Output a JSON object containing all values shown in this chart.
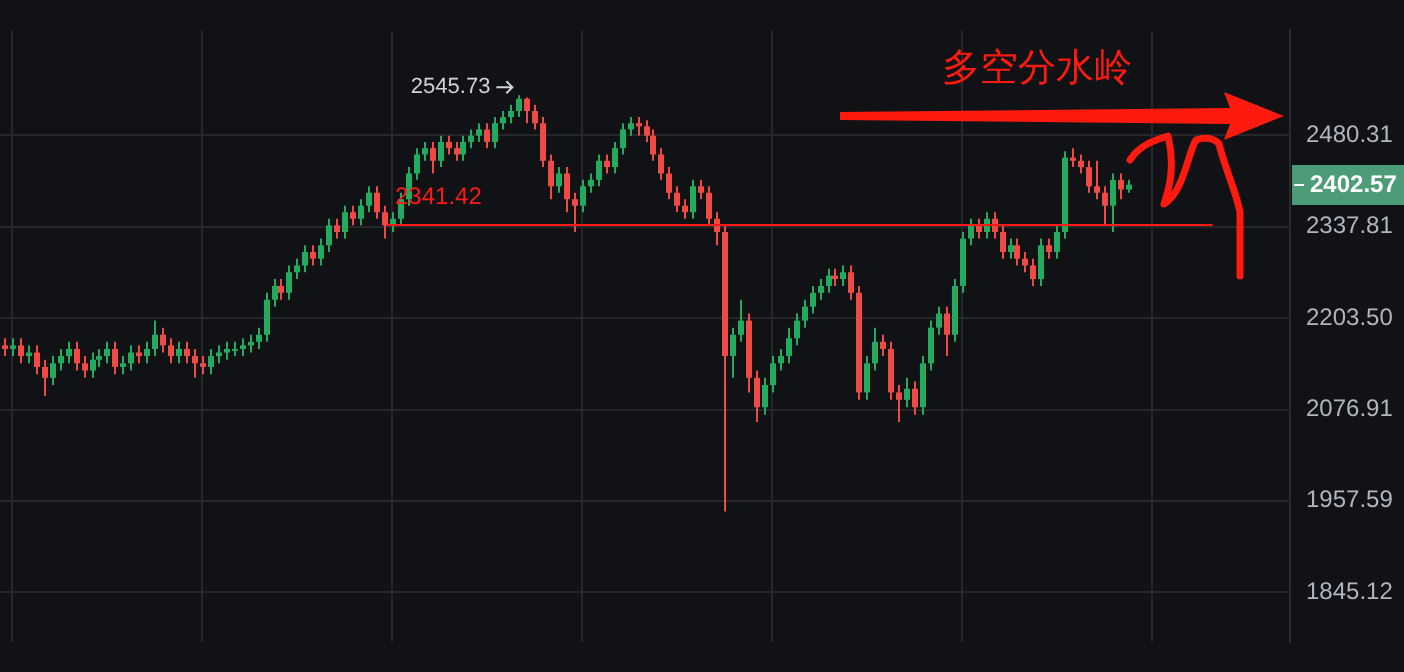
{
  "chart_data": {
    "type": "candlestick",
    "categories": [
      null,
      null,
      null,
      null,
      null,
      null,
      null,
      null,
      null,
      null,
      null,
      null,
      null,
      null,
      null,
      null,
      null,
      null,
      null,
      null,
      null,
      null,
      null,
      null,
      null,
      null,
      null,
      null,
      null,
      null,
      null,
      null,
      null,
      null,
      null,
      null,
      null,
      null,
      null,
      null,
      null,
      null,
      null,
      null,
      null,
      null,
      null,
      null,
      null,
      null,
      null,
      null,
      null,
      null,
      null,
      null,
      null,
      null,
      null,
      null,
      null,
      null,
      null,
      null,
      null,
      null,
      null,
      null,
      null,
      null,
      null,
      null,
      null,
      null,
      null,
      null,
      null,
      null,
      null,
      null,
      null,
      null,
      null,
      null,
      null,
      null,
      null,
      null,
      null,
      null,
      null,
      null,
      null,
      null,
      null,
      null,
      null,
      null,
      null,
      null,
      null,
      null,
      null,
      null,
      null,
      null,
      null,
      null,
      null,
      null,
      null,
      null,
      null,
      null,
      null,
      null,
      null,
      null,
      null,
      null,
      null,
      null,
      null,
      null,
      null,
      null,
      null,
      null,
      null,
      null,
      null,
      null,
      null,
      null,
      null,
      null,
      null,
      null,
      null,
      null,
      null,
      null,
      null,
      null,
      null,
      null,
      null,
      null,
      null,
      null,
      null,
      null,
      null,
      null,
      null,
      null,
      null,
      null,
      null,
      null,
      null,
      null,
      null
    ],
    "ohlc": [
      [
        2165,
        2175,
        2150,
        2160
      ],
      [
        2160,
        2175,
        2150,
        2165
      ],
      [
        2165,
        2175,
        2140,
        2150
      ],
      [
        2150,
        2165,
        2140,
        2155
      ],
      [
        2155,
        2165,
        2125,
        2135
      ],
      [
        2135,
        2145,
        2095,
        2120
      ],
      [
        2120,
        2150,
        2110,
        2140
      ],
      [
        2140,
        2160,
        2130,
        2150
      ],
      [
        2150,
        2170,
        2140,
        2160
      ],
      [
        2160,
        2170,
        2130,
        2140
      ],
      [
        2140,
        2150,
        2120,
        2130
      ],
      [
        2130,
        2155,
        2120,
        2145
      ],
      [
        2145,
        2160,
        2135,
        2150
      ],
      [
        2150,
        2170,
        2140,
        2160
      ],
      [
        2160,
        2170,
        2125,
        2135
      ],
      [
        2135,
        2150,
        2125,
        2140
      ],
      [
        2140,
        2165,
        2130,
        2155
      ],
      [
        2155,
        2165,
        2140,
        2150
      ],
      [
        2150,
        2170,
        2140,
        2160
      ],
      [
        2160,
        2200,
        2150,
        2180
      ],
      [
        2180,
        2190,
        2155,
        2165
      ],
      [
        2165,
        2175,
        2140,
        2150
      ],
      [
        2150,
        2170,
        2140,
        2160
      ],
      [
        2160,
        2170,
        2140,
        2150
      ],
      [
        2150,
        2160,
        2120,
        2140
      ],
      [
        2140,
        2150,
        2125,
        2135
      ],
      [
        2135,
        2160,
        2125,
        2150
      ],
      [
        2150,
        2165,
        2140,
        2155
      ],
      [
        2155,
        2170,
        2145,
        2160
      ],
      [
        2160,
        2170,
        2150,
        2160
      ],
      [
        2160,
        2175,
        2150,
        2165
      ],
      [
        2165,
        2180,
        2155,
        2170
      ],
      [
        2170,
        2190,
        2160,
        2180
      ],
      [
        2180,
        2240,
        2170,
        2230
      ],
      [
        2230,
        2260,
        2220,
        2250
      ],
      [
        2250,
        2260,
        2230,
        2240
      ],
      [
        2240,
        2280,
        2230,
        2270
      ],
      [
        2270,
        2290,
        2260,
        2280
      ],
      [
        2280,
        2310,
        2270,
        2300
      ],
      [
        2300,
        2310,
        2280,
        2290
      ],
      [
        2290,
        2320,
        2280,
        2310
      ],
      [
        2310,
        2350,
        2300,
        2340
      ],
      [
        2340,
        2350,
        2320,
        2330
      ],
      [
        2330,
        2370,
        2320,
        2360
      ],
      [
        2360,
        2370,
        2340,
        2350
      ],
      [
        2350,
        2380,
        2340,
        2370
      ],
      [
        2370,
        2400,
        2360,
        2390
      ],
      [
        2390,
        2400,
        2350,
        2360
      ],
      [
        2360,
        2370,
        2320,
        2340
      ],
      [
        2340,
        2360,
        2330,
        2350
      ],
      [
        2350,
        2390,
        2340,
        2380
      ],
      [
        2380,
        2430,
        2370,
        2420
      ],
      [
        2420,
        2460,
        2410,
        2450
      ],
      [
        2450,
        2470,
        2440,
        2460
      ],
      [
        2460,
        2470,
        2420,
        2440
      ],
      [
        2440,
        2480,
        2430,
        2470
      ],
      [
        2470,
        2480,
        2450,
        2460
      ],
      [
        2460,
        2470,
        2440,
        2450
      ],
      [
        2450,
        2480,
        2440,
        2470
      ],
      [
        2470,
        2490,
        2460,
        2480
      ],
      [
        2480,
        2500,
        2470,
        2490
      ],
      [
        2490,
        2500,
        2460,
        2470
      ],
      [
        2470,
        2510,
        2460,
        2500
      ],
      [
        2500,
        2520,
        2490,
        2510
      ],
      [
        2510,
        2530,
        2500,
        2520
      ],
      [
        2520,
        2545.73,
        2510,
        2540
      ],
      [
        2540,
        2542,
        2500,
        2520
      ],
      [
        2520,
        2530,
        2490,
        2500
      ],
      [
        2500,
        2510,
        2430,
        2440
      ],
      [
        2440,
        2450,
        2380,
        2400
      ],
      [
        2400,
        2430,
        2390,
        2420
      ],
      [
        2420,
        2430,
        2360,
        2380
      ],
      [
        2380,
        2390,
        2330,
        2370
      ],
      [
        2370,
        2410,
        2360,
        2400
      ],
      [
        2400,
        2420,
        2390,
        2410
      ],
      [
        2410,
        2450,
        2400,
        2440
      ],
      [
        2440,
        2450,
        2420,
        2430
      ],
      [
        2430,
        2470,
        2420,
        2460
      ],
      [
        2460,
        2500,
        2450,
        2490
      ],
      [
        2490,
        2510,
        2480,
        2500
      ],
      [
        2500,
        2510,
        2480,
        2495
      ],
      [
        2495,
        2505,
        2470,
        2480
      ],
      [
        2480,
        2490,
        2440,
        2450
      ],
      [
        2450,
        2460,
        2410,
        2420
      ],
      [
        2420,
        2430,
        2380,
        2390
      ],
      [
        2390,
        2400,
        2360,
        2370
      ],
      [
        2370,
        2380,
        2350,
        2360
      ],
      [
        2360,
        2410,
        2350,
        2400
      ],
      [
        2400,
        2410,
        2380,
        2390
      ],
      [
        2390,
        2400,
        2340,
        2350
      ],
      [
        2350,
        2360,
        2310,
        2330
      ],
      [
        2330,
        2340,
        1944,
        2150
      ],
      [
        2150,
        2190,
        2120,
        2180
      ],
      [
        2180,
        2230,
        2170,
        2200
      ],
      [
        2200,
        2210,
        2100,
        2120
      ],
      [
        2120,
        2130,
        2060,
        2080
      ],
      [
        2080,
        2120,
        2070,
        2110
      ],
      [
        2110,
        2150,
        2100,
        2140
      ],
      [
        2140,
        2160,
        2130,
        2150
      ],
      [
        2150,
        2190,
        2140,
        2175
      ],
      [
        2175,
        2210,
        2165,
        2200
      ],
      [
        2200,
        2230,
        2190,
        2220
      ],
      [
        2220,
        2250,
        2210,
        2240
      ],
      [
        2240,
        2260,
        2230,
        2250
      ],
      [
        2250,
        2275,
        2240,
        2265
      ],
      [
        2265,
        2275,
        2250,
        2260
      ],
      [
        2260,
        2280,
        2250,
        2270
      ],
      [
        2270,
        2280,
        2230,
        2240
      ],
      [
        2240,
        2250,
        2090,
        2100
      ],
      [
        2100,
        2150,
        2090,
        2140
      ],
      [
        2140,
        2190,
        2130,
        2170
      ],
      [
        2170,
        2180,
        2150,
        2160
      ],
      [
        2160,
        2170,
        2090,
        2100
      ],
      [
        2100,
        2110,
        2060,
        2090
      ],
      [
        2090,
        2120,
        2080,
        2105
      ],
      [
        2105,
        2115,
        2070,
        2080
      ],
      [
        2080,
        2150,
        2070,
        2140
      ],
      [
        2140,
        2200,
        2130,
        2190
      ],
      [
        2190,
        2220,
        2180,
        2210
      ],
      [
        2210,
        2220,
        2150,
        2180
      ],
      [
        2180,
        2260,
        2170,
        2250
      ],
      [
        2250,
        2330,
        2240,
        2320
      ],
      [
        2320,
        2350,
        2310,
        2340
      ],
      [
        2340,
        2350,
        2320,
        2330
      ],
      [
        2330,
        2360,
        2320,
        2350
      ],
      [
        2350,
        2360,
        2320,
        2330
      ],
      [
        2330,
        2340,
        2290,
        2300
      ],
      [
        2300,
        2320,
        2290,
        2310
      ],
      [
        2310,
        2320,
        2280,
        2290
      ],
      [
        2290,
        2300,
        2270,
        2280
      ],
      [
        2280,
        2290,
        2250,
        2260
      ],
      [
        2260,
        2320,
        2250,
        2310
      ],
      [
        2310,
        2320,
        2290,
        2300
      ],
      [
        2300,
        2340,
        2290,
        2330
      ],
      [
        2330,
        2455,
        2320,
        2445
      ],
      [
        2445,
        2460,
        2430,
        2440
      ],
      [
        2440,
        2450,
        2420,
        2430
      ],
      [
        2430,
        2440,
        2390,
        2400
      ],
      [
        2400,
        2440,
        2380,
        2390
      ],
      [
        2390,
        2400,
        2340,
        2370
      ],
      [
        2370,
        2420,
        2330,
        2410
      ],
      [
        2410,
        2420,
        2380,
        2395
      ],
      [
        2395,
        2410,
        2390,
        2402.57
      ],
      null,
      null,
      null,
      null,
      null,
      null,
      null,
      null,
      null,
      null,
      null,
      null,
      null,
      null,
      null,
      null,
      null,
      null,
      null,
      null
    ],
    "colors": [
      "#ef4a44",
      "#22ab5e",
      "#ef4a44",
      "#22ab5e",
      "#ef4a44",
      "#ef4a44",
      "#22ab5e",
      "#22ab5e",
      "#22ab5e",
      "#ef4a44",
      "#ef4a44",
      "#22ab5e",
      "#22ab5e",
      "#22ab5e",
      "#ef4a44",
      "#22ab5e",
      "#22ab5e",
      "#ef4a44",
      "#22ab5e",
      "#22ab5e",
      "#ef4a44",
      "#ef4a44",
      "#22ab5e",
      "#ef4a44",
      "#ef4a44",
      "#ef4a44",
      "#22ab5e",
      "#22ab5e",
      "#22ab5e",
      "#22ab5e",
      "#22ab5e",
      "#22ab5e",
      "#22ab5e",
      "#22ab5e",
      "#22ab5e",
      "#ef4a44",
      "#22ab5e",
      "#22ab5e",
      "#22ab5e",
      "#ef4a44",
      "#22ab5e",
      "#22ab5e",
      "#ef4a44",
      "#22ab5e",
      "#ef4a44",
      "#22ab5e",
      "#22ab5e",
      "#ef4a44",
      "#ef4a44",
      "#22ab5e",
      "#22ab5e",
      "#22ab5e",
      "#22ab5e",
      "#22ab5e",
      "#ef4a44",
      "#22ab5e",
      "#ef4a44",
      "#ef4a44",
      "#22ab5e",
      "#22ab5e",
      "#22ab5e",
      "#ef4a44",
      "#22ab5e",
      "#22ab5e",
      "#22ab5e",
      "#22ab5e",
      "#ef4a44",
      "#ef4a44",
      "#ef4a44",
      "#ef4a44",
      "#22ab5e",
      "#ef4a44",
      "#ef4a44",
      "#22ab5e",
      "#22ab5e",
      "#22ab5e",
      "#ef4a44",
      "#22ab5e",
      "#22ab5e",
      "#22ab5e",
      "#ef4a44",
      "#ef4a44",
      "#ef4a44",
      "#ef4a44",
      "#ef4a44",
      "#ef4a44",
      "#ef4a44",
      "#22ab5e",
      "#ef4a44",
      "#ef4a44",
      "#ef4a44",
      "#ef4a44",
      "#22ab5e",
      "#22ab5e",
      "#ef4a44",
      "#ef4a44",
      "#22ab5e",
      "#22ab5e",
      "#22ab5e",
      "#22ab5e",
      "#22ab5e",
      "#22ab5e",
      "#22ab5e",
      "#22ab5e",
      "#22ab5e",
      "#ef4a44",
      "#22ab5e",
      "#ef4a44",
      "#ef4a44",
      "#22ab5e",
      "#22ab5e",
      "#ef4a44",
      "#ef4a44",
      "#ef4a44",
      "#22ab5e",
      "#ef4a44",
      "#22ab5e",
      "#22ab5e",
      "#22ab5e",
      "#ef4a44",
      "#22ab5e",
      "#22ab5e",
      "#22ab5e",
      "#ef4a44",
      "#22ab5e",
      "#ef4a44",
      "#ef4a44",
      "#22ab5e",
      "#ef4a44",
      "#ef4a44",
      "#ef4a44",
      "#22ab5e",
      "#ef4a44",
      "#22ab5e",
      "#22ab5e",
      "#ef4a44",
      "#ef4a44",
      "#ef4a44",
      "#ef4a44",
      "#ef4a44",
      "#22ab5e",
      "#ef4a44",
      "#22ab5e",
      null,
      null,
      null,
      null,
      null,
      null,
      null,
      null,
      null,
      null,
      null,
      null,
      null,
      null,
      null,
      null,
      null,
      null,
      null,
      null
    ],
    "ylim": [
      1787,
      2655
    ],
    "yticks": [
      1845.12,
      1957.59,
      2076.91,
      {
        "value": 2203.5,
        "label": "2203.50"
      },
      2337.81,
      2480.31
    ],
    "log": true,
    "grid": true,
    "tick_labels": "y",
    "ref_lines": [
      {
        "axis": "y",
        "value": 2341.42,
        "label": "2341.42",
        "color": "#ff1a1a"
      }
    ],
    "annotations": [
      "2545.73",
      "多空分水岭",
      "2402.57"
    ]
  }
}
